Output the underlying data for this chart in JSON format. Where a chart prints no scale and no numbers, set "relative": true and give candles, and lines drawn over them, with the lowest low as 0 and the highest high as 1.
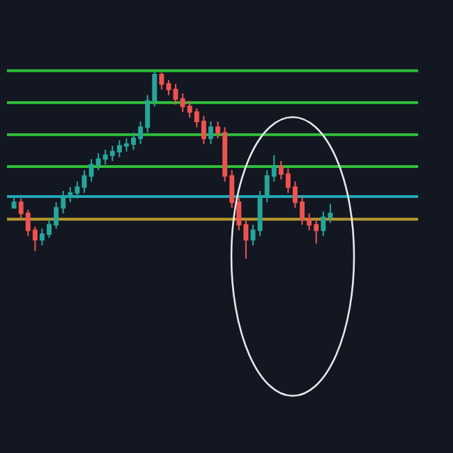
{
  "chart_data": {
    "type": "candlestick",
    "relative": true,
    "categories": [
      null,
      null,
      null,
      null,
      null,
      null,
      null,
      null,
      null,
      null,
      null,
      null,
      null,
      null,
      null,
      null,
      null,
      null,
      null,
      null,
      null,
      null,
      null,
      null,
      null,
      null,
      null,
      null,
      null,
      null,
      null,
      null,
      null,
      null,
      null,
      null,
      null,
      null,
      null,
      null,
      null,
      null,
      null,
      null,
      null,
      null
    ],
    "ohlc": [
      [
        0.27,
        0.33,
        0.27,
        0.3
      ],
      [
        0.3,
        0.32,
        0.21,
        0.24
      ],
      [
        0.24,
        0.26,
        0.12,
        0.15
      ],
      [
        0.15,
        0.17,
        0.04,
        0.1
      ],
      [
        0.1,
        0.16,
        0.07,
        0.13
      ],
      [
        0.13,
        0.21,
        0.11,
        0.18
      ],
      [
        0.18,
        0.3,
        0.16,
        0.27
      ],
      [
        0.27,
        0.36,
        0.24,
        0.33
      ],
      [
        0.33,
        0.38,
        0.3,
        0.35
      ],
      [
        0.35,
        0.41,
        0.32,
        0.38
      ],
      [
        0.38,
        0.47,
        0.35,
        0.44
      ],
      [
        0.44,
        0.53,
        0.41,
        0.5
      ],
      [
        0.5,
        0.56,
        0.47,
        0.53
      ],
      [
        0.53,
        0.58,
        0.5,
        0.55
      ],
      [
        0.55,
        0.6,
        0.52,
        0.57
      ],
      [
        0.57,
        0.63,
        0.54,
        0.6
      ],
      [
        0.6,
        0.64,
        0.57,
        0.61
      ],
      [
        0.61,
        0.67,
        0.58,
        0.64
      ],
      [
        0.64,
        0.73,
        0.61,
        0.7
      ],
      [
        0.7,
        0.87,
        0.67,
        0.84
      ],
      [
        0.84,
        1.0,
        0.81,
        0.98
      ],
      [
        0.98,
        0.99,
        0.9,
        0.93
      ],
      [
        0.93,
        0.95,
        0.87,
        0.9
      ],
      [
        0.9,
        0.93,
        0.82,
        0.85
      ],
      [
        0.85,
        0.88,
        0.78,
        0.81
      ],
      [
        0.81,
        0.84,
        0.75,
        0.78
      ],
      [
        0.78,
        0.8,
        0.7,
        0.73
      ],
      [
        0.73,
        0.76,
        0.61,
        0.64
      ],
      [
        0.64,
        0.73,
        0.61,
        0.7
      ],
      [
        0.7,
        0.73,
        0.64,
        0.67
      ],
      [
        0.67,
        0.7,
        0.41,
        0.44
      ],
      [
        0.44,
        0.47,
        0.27,
        0.3
      ],
      [
        0.3,
        0.33,
        0.15,
        0.18
      ],
      [
        0.18,
        0.21,
        0.0,
        0.1
      ],
      [
        0.1,
        0.18,
        0.07,
        0.15
      ],
      [
        0.15,
        0.36,
        0.12,
        0.33
      ],
      [
        0.33,
        0.47,
        0.3,
        0.44
      ],
      [
        0.44,
        0.55,
        0.41,
        0.49
      ],
      [
        0.49,
        0.52,
        0.42,
        0.45
      ],
      [
        0.45,
        0.48,
        0.35,
        0.38
      ],
      [
        0.38,
        0.41,
        0.27,
        0.3
      ],
      [
        0.3,
        0.33,
        0.18,
        0.21
      ],
      [
        0.21,
        0.24,
        0.15,
        0.18
      ],
      [
        0.18,
        0.21,
        0.08,
        0.15
      ],
      [
        0.15,
        0.25,
        0.12,
        0.22
      ],
      [
        0.22,
        0.29,
        0.19,
        0.24
      ]
    ],
    "ref_lines": [
      {
        "axis": "y",
        "value": 1.0,
        "color": "#2fbf3a"
      },
      {
        "axis": "y",
        "value": 0.83,
        "color": "#2fbf3a"
      },
      {
        "axis": "y",
        "value": 0.66,
        "color": "#2fbf3a"
      },
      {
        "axis": "y",
        "value": 0.49,
        "color": "#2fbf3a"
      },
      {
        "axis": "y",
        "value": 0.33,
        "color": "#22a7b8"
      },
      {
        "axis": "y",
        "value": 0.21,
        "color": "#b59a2e"
      }
    ]
  }
}
